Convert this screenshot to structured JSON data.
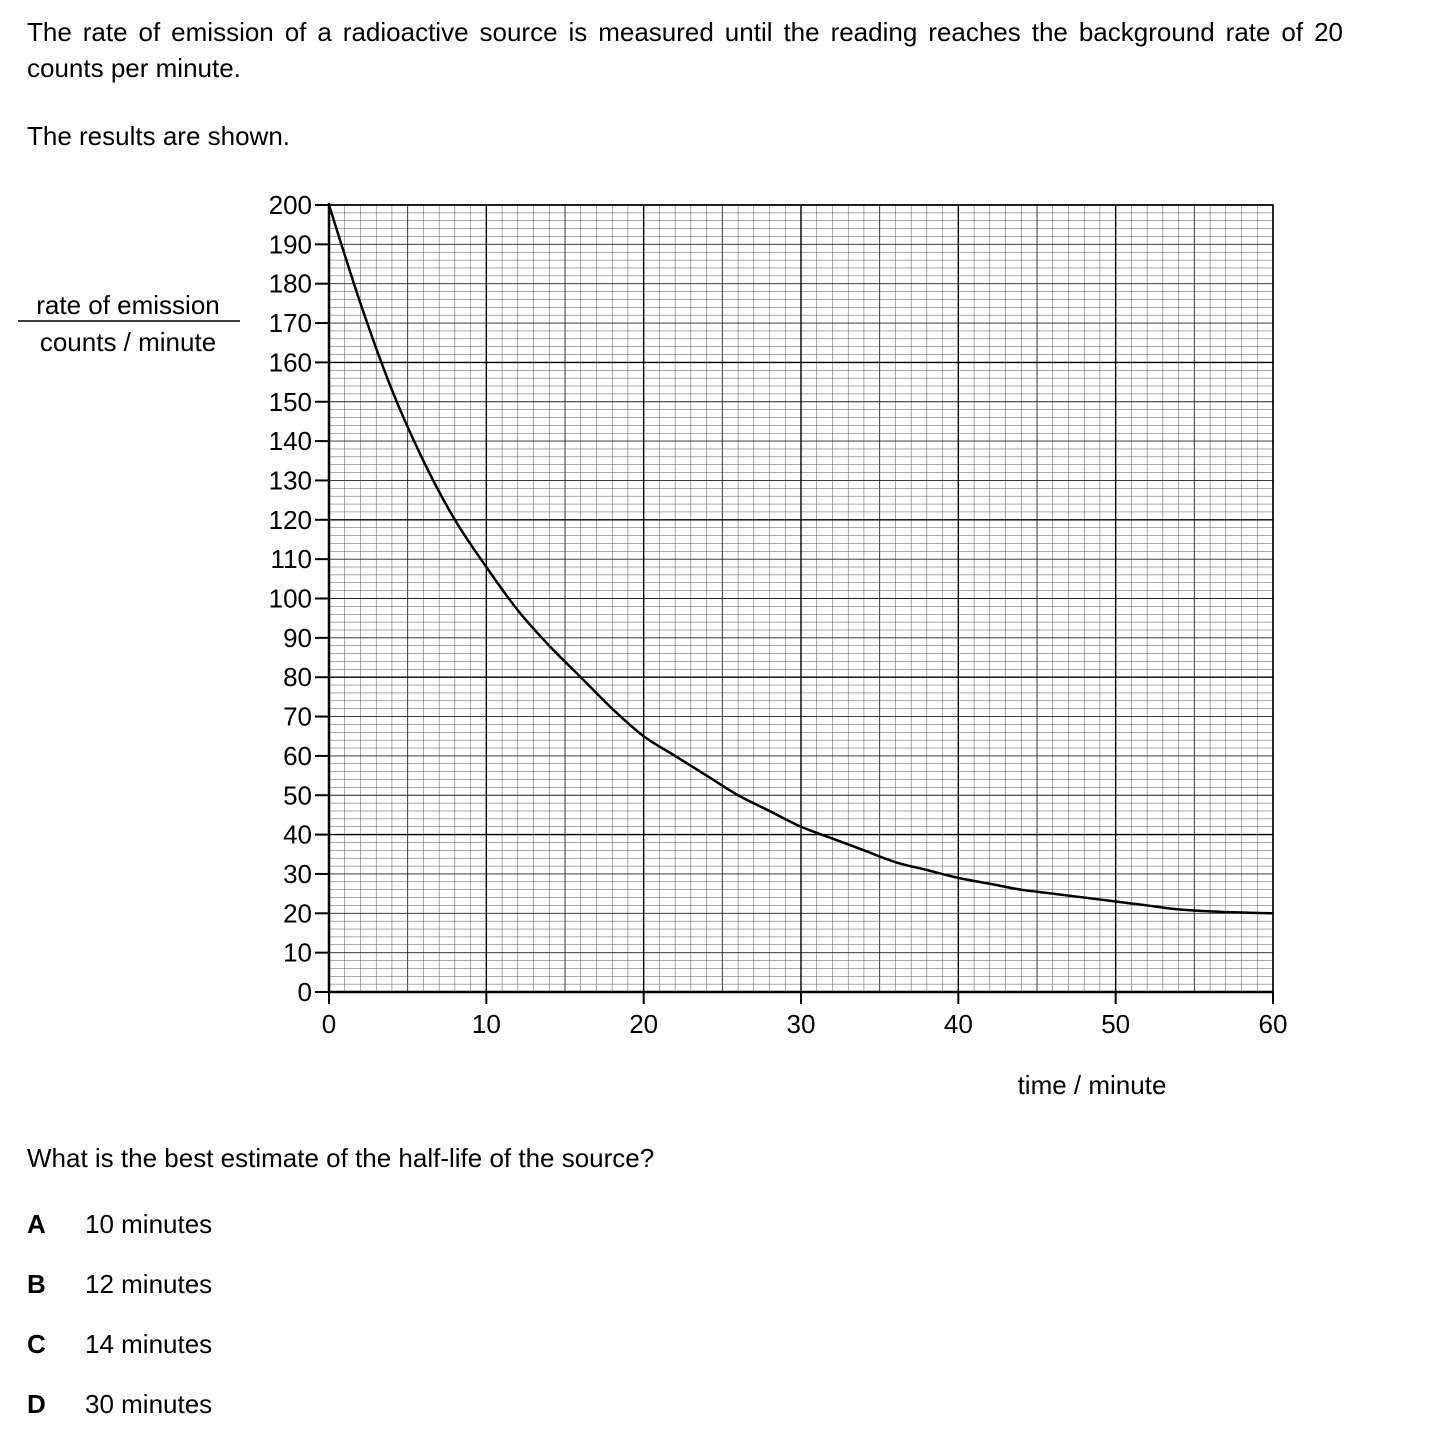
{
  "intro": "The rate of emission of a radioactive source is measured until the reading reaches the background rate of 20 counts per minute.",
  "shown": "The results are shown.",
  "question": "What is the best estimate of the half-life of the source?",
  "options": [
    {
      "letter": "A",
      "text": "10 minutes"
    },
    {
      "letter": "B",
      "text": "12 minutes"
    },
    {
      "letter": "C",
      "text": "14 minutes"
    },
    {
      "letter": "D",
      "text": "30 minutes"
    }
  ],
  "chart_data": {
    "type": "line",
    "ylabel_top": "rate of emission",
    "ylabel_bottom": "counts / minute",
    "xlabel": "time / minute",
    "xlim": [
      0,
      60
    ],
    "ylim": [
      0,
      200
    ],
    "xticks": [
      "0",
      "10",
      "20",
      "30",
      "40",
      "50",
      "60"
    ],
    "yticks": [
      "0",
      "10",
      "20",
      "30",
      "40",
      "50",
      "60",
      "70",
      "80",
      "90",
      "100",
      "110",
      "120",
      "130",
      "140",
      "150",
      "160",
      "170",
      "180",
      "190",
      "200"
    ],
    "grid": true,
    "series": [
      {
        "x": [
          0,
          2,
          4,
          6,
          8,
          10,
          12,
          14,
          16,
          18,
          20,
          22,
          24,
          26,
          28,
          30,
          32,
          34,
          36,
          38,
          40,
          42,
          44,
          46,
          48,
          50,
          52,
          54,
          56,
          58,
          60
        ],
        "y": [
          200,
          175,
          153,
          135,
          120,
          108,
          97,
          88,
          80,
          72,
          65,
          60,
          55,
          50,
          46,
          42,
          39,
          36,
          33,
          31,
          29,
          27.5,
          26,
          25,
          24,
          23,
          22,
          21,
          20.5,
          20.2,
          20
        ]
      }
    ]
  }
}
